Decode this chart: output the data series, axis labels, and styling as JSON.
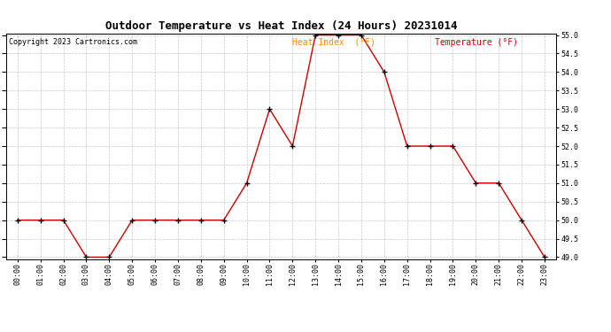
{
  "title": "Outdoor Temperature vs Heat Index (24 Hours) 20231014",
  "copyright": "Copyright 2023 Cartronics.com",
  "legend_heat": "Heat Index  (°F)",
  "legend_temp": "Temperature (°F)",
  "hours": [
    "00:00",
    "01:00",
    "02:00",
    "03:00",
    "04:00",
    "05:00",
    "06:00",
    "07:00",
    "08:00",
    "09:00",
    "10:00",
    "11:00",
    "12:00",
    "13:00",
    "14:00",
    "15:00",
    "16:00",
    "17:00",
    "18:00",
    "19:00",
    "20:00",
    "21:00",
    "22:00",
    "23:00"
  ],
  "temperature": [
    50.0,
    50.0,
    50.0,
    49.0,
    49.0,
    50.0,
    50.0,
    50.0,
    50.0,
    50.0,
    51.0,
    53.0,
    52.0,
    55.0,
    55.0,
    55.0,
    54.0,
    52.0,
    52.0,
    52.0,
    51.0,
    51.0,
    50.0,
    49.0
  ],
  "heat_index": [
    50.0,
    50.0,
    50.0,
    49.0,
    49.0,
    50.0,
    50.0,
    50.0,
    50.0,
    50.0,
    51.0,
    53.0,
    52.0,
    55.0,
    55.0,
    55.0,
    54.0,
    52.0,
    52.0,
    52.0,
    51.0,
    51.0,
    50.0,
    49.0
  ],
  "ylim": [
    49.0,
    55.0
  ],
  "ytick_step": 0.5,
  "line_color": "#cc0000",
  "heat_index_color": "#ff8800",
  "temp_color": "#cc0000",
  "marker": "+",
  "marker_color": "#000000",
  "grid_color": "#bbbbbb",
  "background_color": "#ffffff",
  "title_fontsize": 9,
  "copyright_fontsize": 6,
  "legend_fontsize": 7,
  "tick_fontsize": 6,
  "ylabel_right": "°F"
}
